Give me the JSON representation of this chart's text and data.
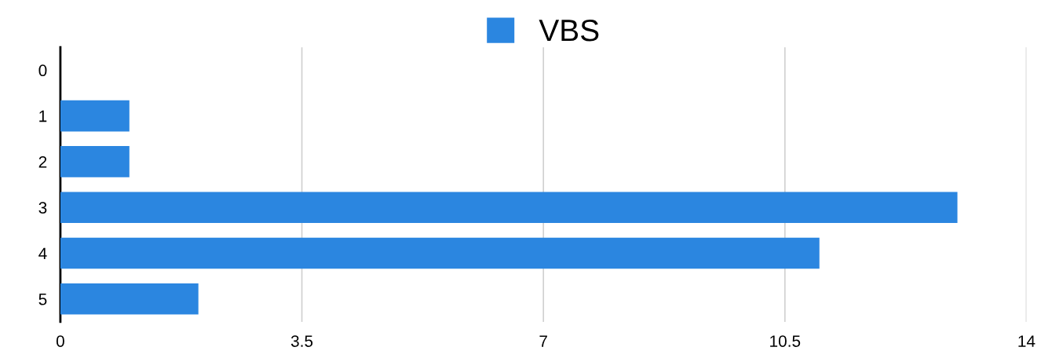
{
  "chart_data": {
    "type": "bar",
    "orientation": "horizontal",
    "categories": [
      "0",
      "1",
      "2",
      "3",
      "4",
      "5"
    ],
    "series": [
      {
        "name": "VBS",
        "color": "#2b86e0",
        "values": [
          0,
          1,
          1,
          13,
          11,
          2
        ]
      }
    ],
    "xlim": [
      0,
      14
    ],
    "xticks": [
      0,
      3.5,
      7,
      10.5,
      14
    ],
    "grid": "x",
    "legend": "top"
  }
}
